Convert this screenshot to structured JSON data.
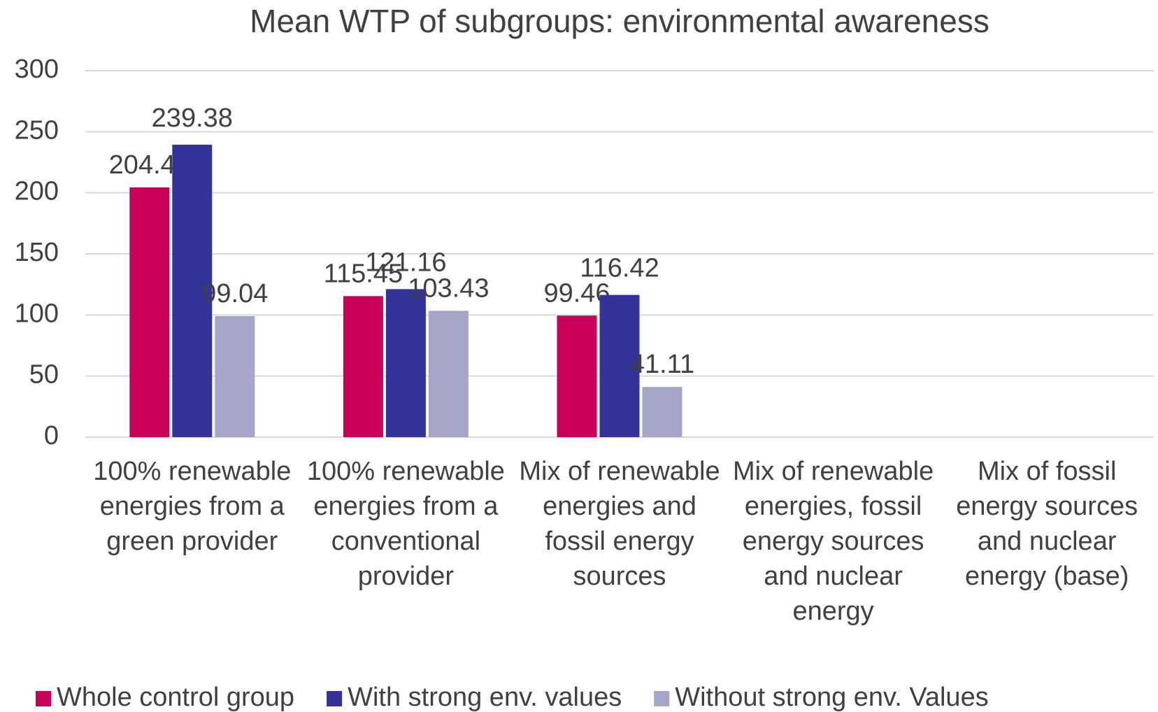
{
  "chart_data": {
    "type": "bar",
    "title": "Mean WTP of subgroups: environmental awareness",
    "categories": [
      "100% renewable energies from a green provider",
      "100% renewable energies from a conventional provider",
      "Mix of renewable energies and fossil energy sources",
      "Mix of renewable energies, fossil energy sources and nuclear energy",
      "Mix of fossil energy sources and nuclear energy (base)"
    ],
    "series": [
      {
        "name": "Whole control group",
        "color": "#c8005a",
        "values": [
          204.42,
          115.45,
          99.46,
          null,
          null
        ]
      },
      {
        "name": "With strong env. values",
        "color": "#333399",
        "values": [
          239.38,
          121.16,
          116.42,
          null,
          null
        ]
      },
      {
        "name": "Without strong env. Values",
        "color": "#a5a5c8",
        "values": [
          99.04,
          103.43,
          41.11,
          null,
          null
        ]
      }
    ],
    "ylim": [
      0,
      300
    ],
    "yticks": [
      0,
      50,
      100,
      150,
      200,
      250,
      300
    ],
    "grid": true,
    "legend": "bottom"
  }
}
